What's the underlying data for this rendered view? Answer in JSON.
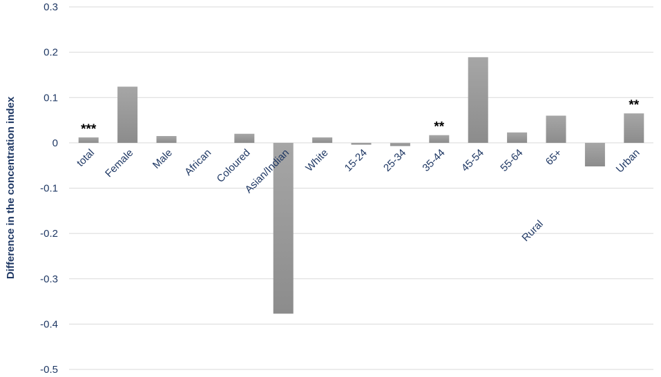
{
  "chart_data": {
    "type": "bar",
    "title": "",
    "xlabel": "",
    "ylabel": "Difference in the concentration index",
    "ylim": [
      -0.5,
      0.3
    ],
    "yticks": [
      0.3,
      0.2,
      0.1,
      0,
      -0.1,
      -0.2,
      -0.3,
      -0.4,
      -0.5
    ],
    "ytick_labels": [
      "0.3",
      "0.2",
      "0.1",
      "0",
      "-0.1",
      "-0.2",
      "-0.3",
      "-0.4",
      "-0.5"
    ],
    "grid": true,
    "legend": "none",
    "bar_color": "#a6a6a6",
    "bar_color_dark": "#8c8c8c",
    "categories": [
      "total",
      "Female",
      "Male",
      "African",
      "Coloured",
      "Asian/Indian",
      "White",
      "15-24",
      "25-34",
      "35-44",
      "45-54",
      "55-64",
      "65+",
      "Rural",
      "Urban"
    ],
    "values": [
      0.012,
      0.124,
      0.015,
      0.0,
      0.02,
      -0.377,
      0.012,
      -0.004,
      -0.007,
      0.017,
      0.189,
      0.023,
      0.06,
      -0.052,
      0.065
    ],
    "annotations": [
      {
        "category": "total",
        "text": "***"
      },
      {
        "category": "35-44",
        "text": "**"
      },
      {
        "category": "Urban",
        "text": "**"
      }
    ]
  }
}
